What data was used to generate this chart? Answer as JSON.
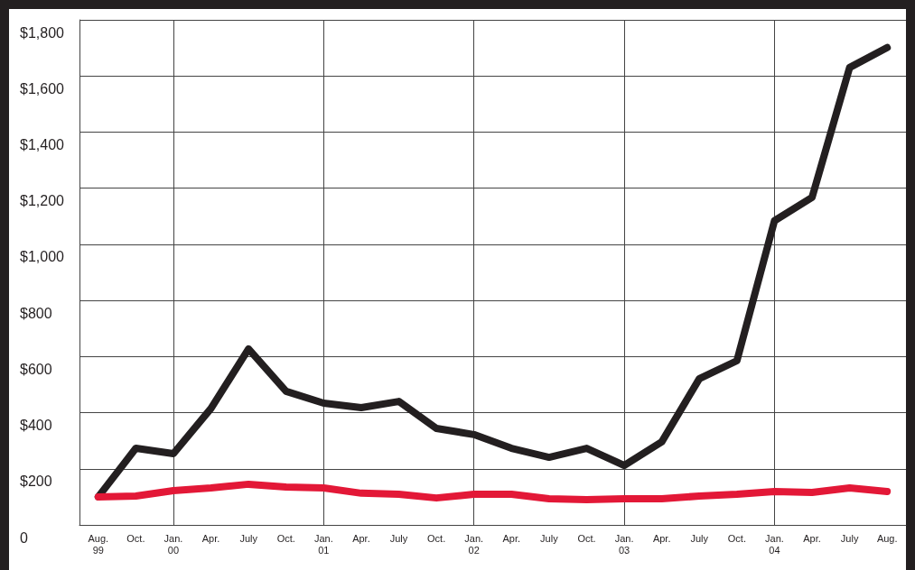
{
  "chart_data": {
    "type": "line",
    "categories": [
      "Aug.\n99",
      "Oct.",
      "Jan.\n00",
      "Apr.",
      "July",
      "Oct.",
      "Jan.\n01",
      "Apr.",
      "July",
      "Oct.",
      "Jan.\n02",
      "Apr.",
      "July",
      "Oct.",
      "Jan.\n03",
      "Apr.",
      "July",
      "Oct.",
      "Jan.\n04",
      "Apr.",
      "July",
      "Aug."
    ],
    "series": [
      {
        "color": "#231f20",
        "values": [
          100,
          273,
          254,
          415,
          627,
          476,
          434,
          418,
          440,
          344,
          322,
          273,
          241,
          273,
          212,
          296,
          521,
          585,
          1084,
          1167,
          1630,
          1701
        ]
      },
      {
        "color": "#e31837",
        "values": [
          100,
          103,
          122,
          132,
          145,
          135,
          132,
          113,
          109,
          96,
          109,
          109,
          93,
          90,
          93,
          93,
          103,
          109,
          119,
          116,
          132,
          119
        ]
      }
    ],
    "ylim": [
      0,
      1800
    ],
    "yticks": [
      {
        "value": 0,
        "label": "0"
      },
      {
        "value": 200,
        "label": "$200"
      },
      {
        "value": 400,
        "label": "$400"
      },
      {
        "value": 600,
        "label": "$600"
      },
      {
        "value": 800,
        "label": "$800"
      },
      {
        "value": 1000,
        "label": "$1,000"
      },
      {
        "value": 1200,
        "label": "$1,200"
      },
      {
        "value": 1400,
        "label": "$1,400"
      },
      {
        "value": 1600,
        "label": "$1,600"
      },
      {
        "value": 1800,
        "label": "$1,800"
      }
    ],
    "ref_lines": [
      {
        "axis": "x",
        "value": "Jan.\n00",
        "label": null
      },
      {
        "axis": "x",
        "value": "Jan.\n01",
        "label": null
      },
      {
        "axis": "x",
        "value": "Jan.\n02",
        "label": null
      },
      {
        "axis": "x",
        "value": "Jan.\n03",
        "label": null
      },
      {
        "axis": "x",
        "value": "Jan.\n04",
        "label": null
      }
    ],
    "grid": "y",
    "line_style": "solid"
  }
}
